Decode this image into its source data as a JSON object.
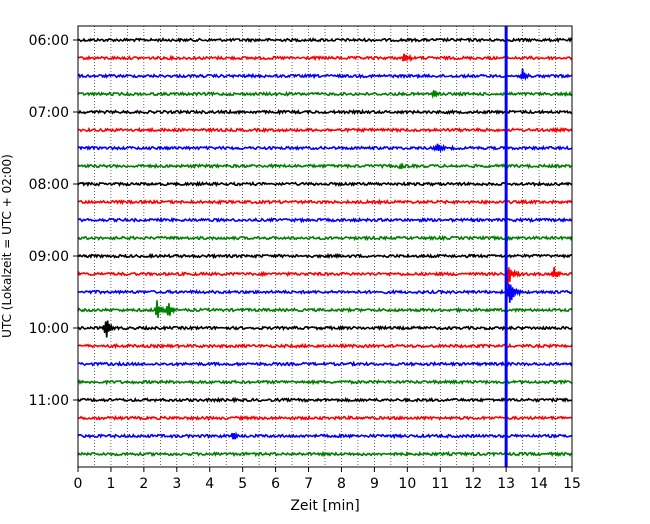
{
  "chart_data": {
    "type": "line",
    "title": "",
    "xlabel": "Zeit  [min]",
    "ylabel": "UTC (Lokalzeit = UTC + 02:00)",
    "xlim": [
      0,
      15
    ],
    "x_ticks": [
      0,
      1,
      2,
      3,
      4,
      5,
      6,
      7,
      8,
      9,
      10,
      11,
      12,
      13,
      14,
      15
    ],
    "x_tick_labels": [
      "0",
      "1",
      "2",
      "3",
      "4",
      "5",
      "6",
      "7",
      "8",
      "9",
      "10",
      "11",
      "12",
      "13",
      "14",
      "15"
    ],
    "grid": "vertical dotted, every 0.5 min",
    "y_axis": "time of day, 15-minute trace offset, inverted (earliest at top)",
    "y_tick_labels": [
      "06:00",
      "07:00",
      "08:00",
      "09:00",
      "10:00",
      "11:00"
    ],
    "trace_interval_minutes": 15,
    "traces": [
      {
        "start": "06:00",
        "color": "#000000",
        "events": []
      },
      {
        "start": "06:15",
        "color": "#ff0000",
        "events": [
          {
            "t": 9.9,
            "amp": 0.35
          }
        ]
      },
      {
        "start": "06:30",
        "color": "#0000ff",
        "events": [
          {
            "t": 13.5,
            "amp": 0.4
          }
        ]
      },
      {
        "start": "06:45",
        "color": "#008000",
        "events": [
          {
            "t": 10.8,
            "amp": 0.3
          }
        ]
      },
      {
        "start": "07:00",
        "color": "#000000",
        "events": []
      },
      {
        "start": "07:15",
        "color": "#ff0000",
        "events": []
      },
      {
        "start": "07:30",
        "color": "#0000ff",
        "events": [
          {
            "t": 10.9,
            "amp": 0.3
          }
        ]
      },
      {
        "start": "07:45",
        "color": "#008000",
        "events": [
          {
            "t": 9.8,
            "amp": 0.2
          }
        ]
      },
      {
        "start": "08:00",
        "color": "#000000",
        "events": []
      },
      {
        "start": "08:15",
        "color": "#ff0000",
        "events": []
      },
      {
        "start": "08:30",
        "color": "#0000ff",
        "events": []
      },
      {
        "start": "08:45",
        "color": "#008000",
        "events": []
      },
      {
        "start": "09:00",
        "color": "#000000",
        "events": []
      },
      {
        "start": "09:15",
        "color": "#ff0000",
        "events": [
          {
            "t": 13.05,
            "amp": 0.9
          },
          {
            "t": 14.45,
            "amp": 0.5
          }
        ]
      },
      {
        "start": "09:30",
        "color": "#0000ff",
        "events": [
          {
            "t": 13.1,
            "amp": 1.1
          }
        ]
      },
      {
        "start": "09:45",
        "color": "#008000",
        "events": [
          {
            "t": 2.4,
            "amp": 0.7
          },
          {
            "t": 2.75,
            "amp": 0.55
          }
        ]
      },
      {
        "start": "10:00",
        "color": "#000000",
        "events": [
          {
            "t": 0.85,
            "amp": 0.9
          }
        ]
      },
      {
        "start": "10:15",
        "color": "#ff0000",
        "events": []
      },
      {
        "start": "10:30",
        "color": "#0000ff",
        "events": []
      },
      {
        "start": "10:45",
        "color": "#008000",
        "events": []
      },
      {
        "start": "11:00",
        "color": "#000000",
        "events": []
      },
      {
        "start": "11:15",
        "color": "#ff0000",
        "events": []
      },
      {
        "start": "11:30",
        "color": "#0000ff",
        "events": [
          {
            "t": 4.7,
            "amp": 0.35
          }
        ]
      },
      {
        "start": "11:45",
        "color": "#008000",
        "events": []
      }
    ],
    "marker": {
      "x": 13.0,
      "color": "#0000ff",
      "style": "vertical line"
    }
  }
}
